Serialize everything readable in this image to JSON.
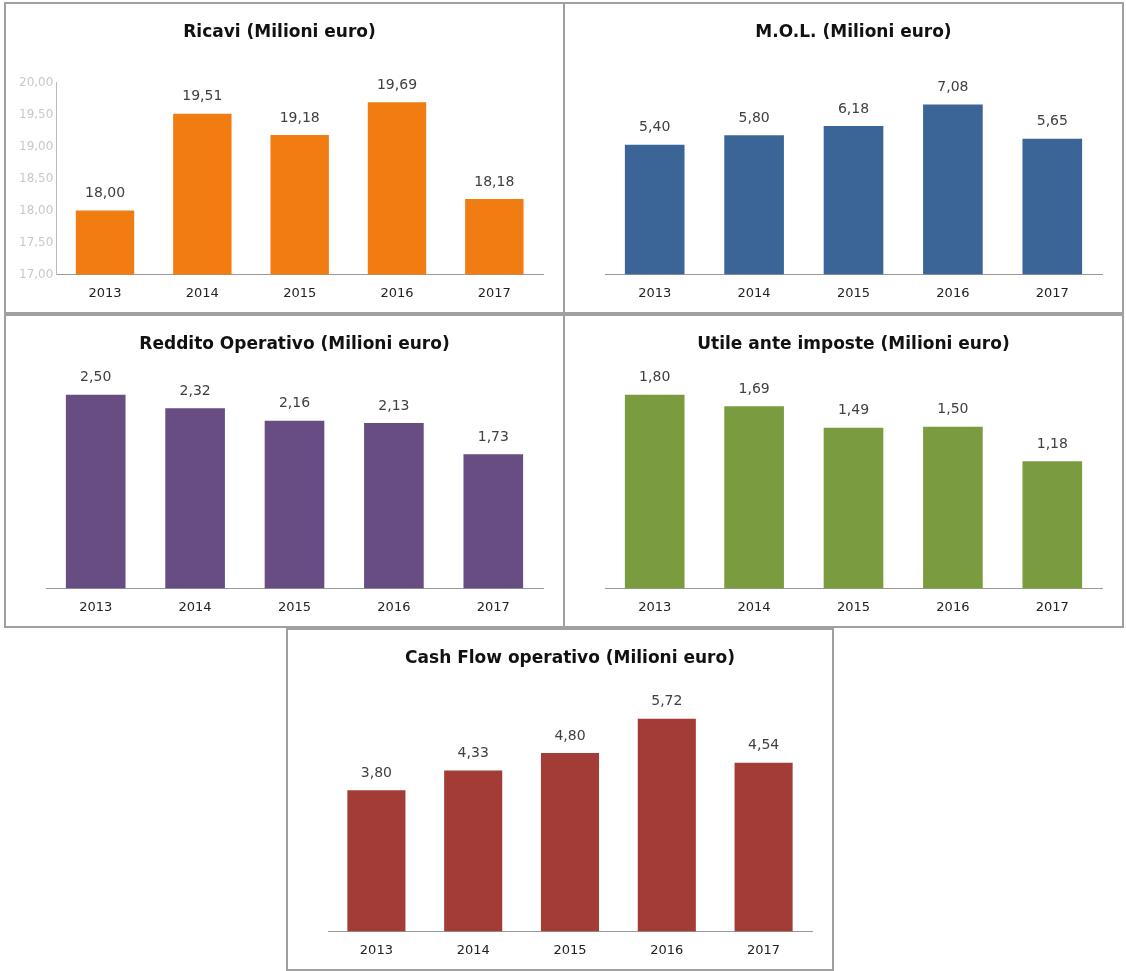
{
  "chart_data": [
    {
      "type": "bar",
      "title": "Ricavi (Milioni euro)",
      "categories": [
        "2013",
        "2014",
        "2015",
        "2016",
        "2017"
      ],
      "values": [
        18.0,
        19.51,
        19.18,
        19.69,
        18.18
      ],
      "value_labels": [
        "18,00",
        "19,51",
        "19,18",
        "19,69",
        "18,18"
      ],
      "color": "#f07c12",
      "ylim": [
        17,
        20
      ],
      "yticks": [
        {
          "value": 17,
          "label": "17,00"
        },
        {
          "value": 17.5,
          "label": "17,50"
        },
        {
          "value": 18,
          "label": "18,00"
        },
        {
          "value": 18.5,
          "label": "18,50"
        },
        {
          "value": 19,
          "label": "19,00"
        },
        {
          "value": 19.5,
          "label": "19,50"
        },
        {
          "value": 20,
          "label": "20,00"
        }
      ],
      "grid": false
    },
    {
      "type": "bar",
      "title": "M.O.L. (Milioni euro)",
      "categories": [
        "2013",
        "2014",
        "2015",
        "2016",
        "2017"
      ],
      "values": [
        5.4,
        5.8,
        6.18,
        7.08,
        5.65
      ],
      "value_labels": [
        "5,40",
        "5,80",
        "6,18",
        "7,08",
        "5,65"
      ],
      "color": "#3b6597",
      "tick_labels": "x",
      "grid": false
    },
    {
      "type": "bar",
      "title": "Reddito Operativo (Milioni euro)",
      "categories": [
        "2013",
        "2014",
        "2015",
        "2016",
        "2017"
      ],
      "values": [
        2.5,
        2.32,
        2.16,
        2.13,
        1.73
      ],
      "value_labels": [
        "2,50",
        "2,32",
        "2,16",
        "2,13",
        "1,73"
      ],
      "color": "#674d81",
      "tick_labels": "x",
      "grid": false
    },
    {
      "type": "bar",
      "title": "Utile ante imposte (Milioni euro)",
      "categories": [
        "2013",
        "2014",
        "2015",
        "2016",
        "2017"
      ],
      "values": [
        1.8,
        1.69,
        1.49,
        1.5,
        1.18
      ],
      "value_labels": [
        "1,80",
        "1,69",
        "1,49",
        "1,50",
        "1,18"
      ],
      "color": "#7b9b3f",
      "tick_labels": "x",
      "grid": false
    },
    {
      "type": "bar",
      "title": "Cash Flow operativo (Milioni euro)",
      "categories": [
        "2013",
        "2014",
        "2015",
        "2016",
        "2017"
      ],
      "values": [
        3.8,
        4.33,
        4.8,
        5.72,
        4.54
      ],
      "value_labels": [
        "3,80",
        "4,33",
        "4,80",
        "5,72",
        "4,54"
      ],
      "color": "#a33b37",
      "tick_labels": "x",
      "grid": false
    }
  ]
}
